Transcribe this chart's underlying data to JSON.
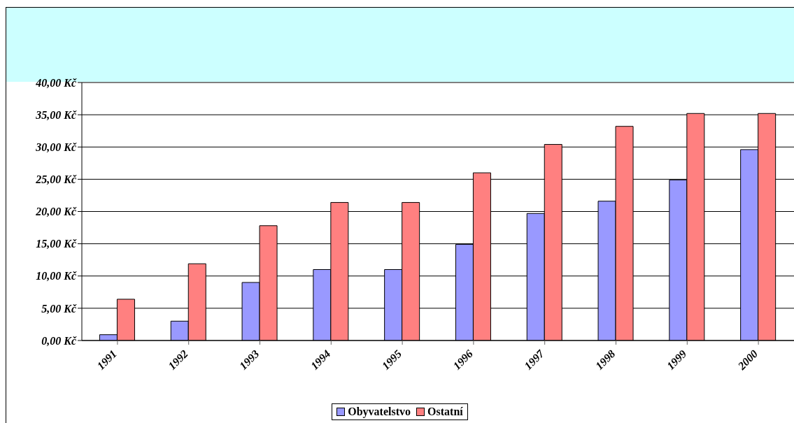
{
  "chart_data": {
    "type": "bar",
    "categories": [
      "1991",
      "1992",
      "1993",
      "1994",
      "1995",
      "1996",
      "1997",
      "1998",
      "1999",
      "2000"
    ],
    "series": [
      {
        "name": "Obyvatelstvo",
        "color": "#9999ff",
        "values": [
          0.9,
          3.0,
          9.0,
          11.0,
          11.0,
          14.9,
          19.7,
          21.6,
          24.9,
          29.6
        ]
      },
      {
        "name": "Ostatní",
        "color": "#ff8080",
        "values": [
          6.4,
          11.9,
          17.8,
          21.4,
          21.4,
          26.0,
          30.4,
          33.2,
          35.2,
          35.2
        ]
      }
    ],
    "ylim": [
      0,
      40
    ],
    "yticks": [
      {
        "value": 0,
        "label": "0,00 Kč"
      },
      {
        "value": 5,
        "label": "5,00 Kč"
      },
      {
        "value": 10,
        "label": "10,00 Kč"
      },
      {
        "value": 15,
        "label": "15,00 Kč"
      },
      {
        "value": 20,
        "label": "20,00 Kč"
      },
      {
        "value": 25,
        "label": "25,00 Kč"
      },
      {
        "value": 30,
        "label": "30,00 Kč"
      },
      {
        "value": 35,
        "label": "35,00 Kč"
      },
      {
        "value": 40,
        "label": "40,00 Kč"
      }
    ],
    "grid": "y",
    "legend": "bottom"
  }
}
